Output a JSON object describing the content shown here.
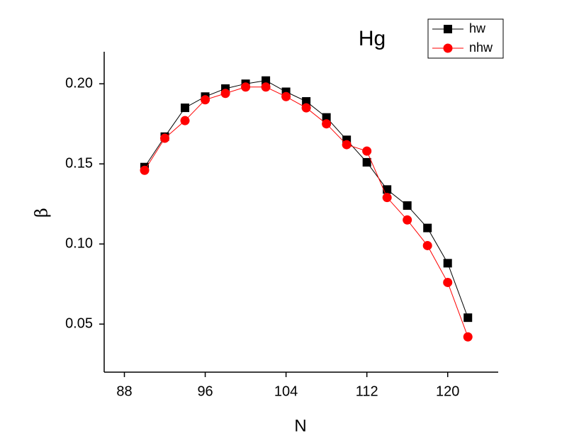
{
  "chart_data": {
    "type": "line",
    "title": "Hg",
    "x_label": "N",
    "y_label": "β",
    "x": [
      90,
      92,
      94,
      96,
      98,
      100,
      102,
      104,
      106,
      108,
      110,
      112,
      114,
      116,
      118,
      120,
      122
    ],
    "series": [
      {
        "name": "hw",
        "color": "#000000",
        "marker": "square",
        "values": [
          0.148,
          0.167,
          0.185,
          0.192,
          0.197,
          0.2,
          0.202,
          0.195,
          0.189,
          0.179,
          0.165,
          0.151,
          0.134,
          0.124,
          0.11,
          0.088,
          0.054
        ]
      },
      {
        "name": "nhw",
        "color": "#ff0000",
        "marker": "circle",
        "values": [
          0.146,
          0.166,
          0.177,
          0.19,
          0.194,
          0.198,
          0.198,
          0.192,
          0.185,
          0.175,
          0.162,
          0.158,
          0.129,
          0.115,
          0.099,
          0.076,
          0.042
        ]
      }
    ],
    "xlim": [
      86,
      125
    ],
    "ylim": [
      0.02,
      0.22
    ],
    "xticks": [
      88,
      96,
      104,
      112,
      120
    ],
    "yticks": [
      {
        "value": 0.05,
        "label": "0.05"
      },
      {
        "value": 0.1,
        "label": "0.10"
      },
      {
        "value": 0.15,
        "label": "0.15"
      },
      {
        "value": 0.2,
        "label": "0.20"
      }
    ],
    "legend": "top-right"
  }
}
